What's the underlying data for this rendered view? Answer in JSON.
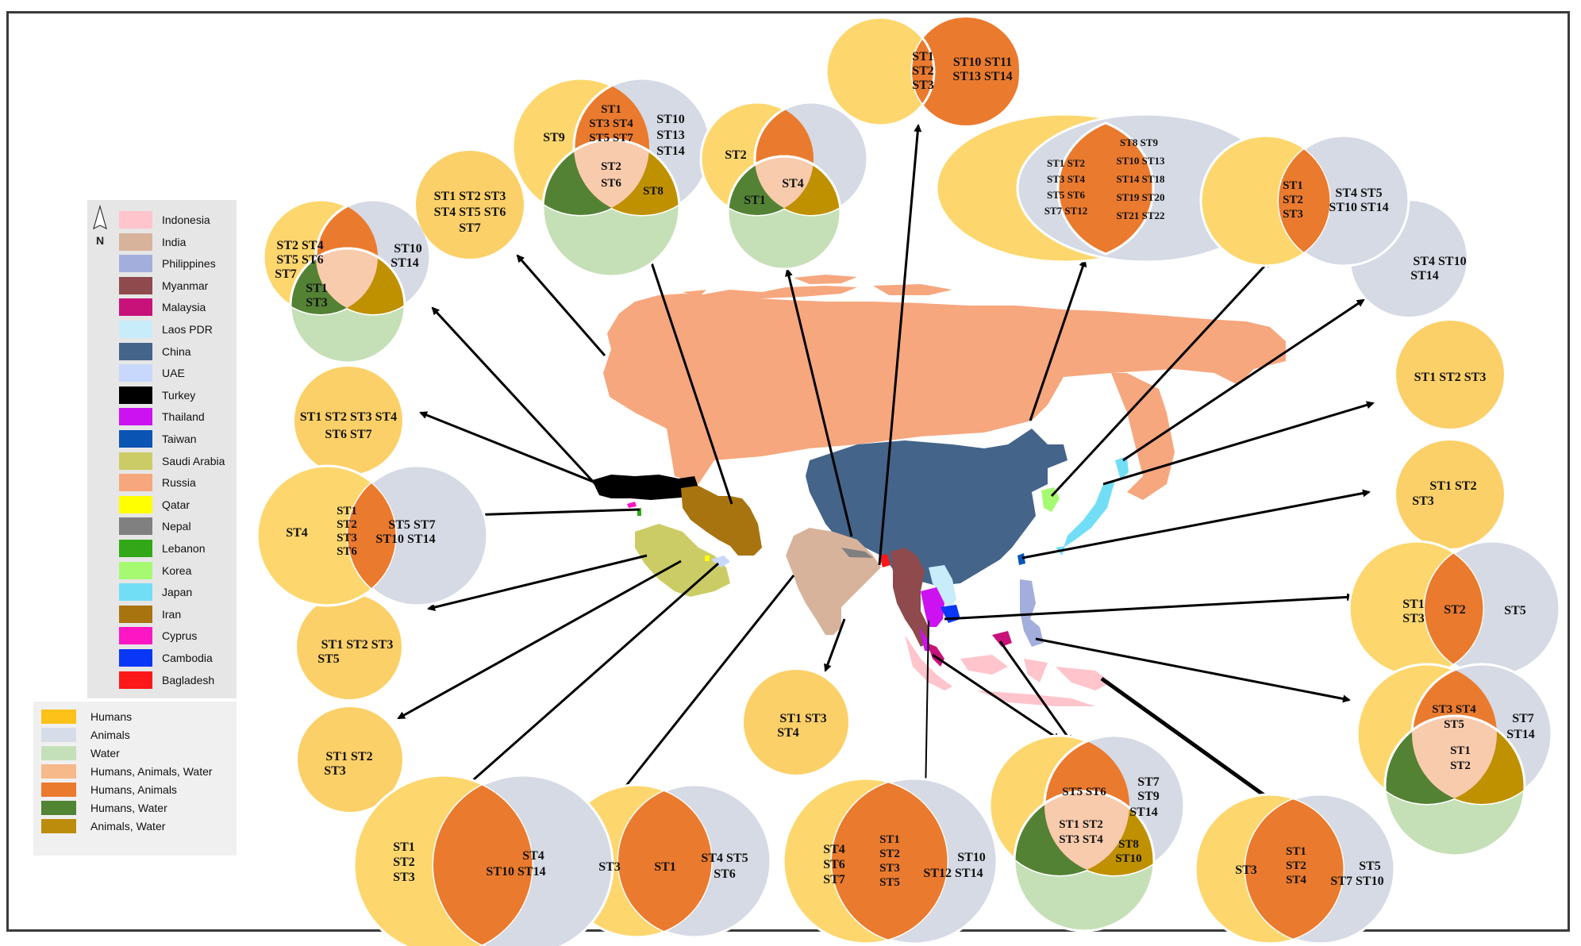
{
  "country_legend": [
    {
      "name": "Indonesia",
      "color": "#ffc4cc"
    },
    {
      "name": "India",
      "color": "#d8b39c"
    },
    {
      "name": "Philippines",
      "color": "#a4aedc"
    },
    {
      "name": "Myanmar",
      "color": "#8e4a4c"
    },
    {
      "name": "Malaysia",
      "color": "#c8127a"
    },
    {
      "name": "Laos PDR",
      "color": "#c8ecfa"
    },
    {
      "name": "China",
      "color": "#44648a"
    },
    {
      "name": "UAE",
      "color": "#c8d8fc"
    },
    {
      "name": "Turkey",
      "color": "#000000"
    },
    {
      "name": "Thailand",
      "color": "#cc12f0"
    },
    {
      "name": "Taiwan",
      "color": "#0a54b4"
    },
    {
      "name": "Saudi Arabia",
      "color": "#cccc66"
    },
    {
      "name": "Russia",
      "color": "#f6a77e"
    },
    {
      "name": "Qatar",
      "color": "#ffff00"
    },
    {
      "name": "Nepal",
      "color": "#808080"
    },
    {
      "name": "Lebanon",
      "color": "#32a818"
    },
    {
      "name": "Korea",
      "color": "#a6fa72"
    },
    {
      "name": "Japan",
      "color": "#72def6"
    },
    {
      "name": "Iran",
      "color": "#a87410"
    },
    {
      "name": "Cyprus",
      "color": "#fc16c4"
    },
    {
      "name": "Cambodia",
      "color": "#0a36f8"
    },
    {
      "name": "Bagladesh",
      "color": "#fc1818"
    }
  ],
  "source_legend": [
    {
      "name": "Humans",
      "color": "#fcc21a"
    },
    {
      "name": "Animals",
      "color": "#d6dce8"
    },
    {
      "name": "Water",
      "color": "#c4e0ba"
    },
    {
      "name": "Humans, Animals, Water",
      "color": "#f6b98a"
    },
    {
      "name": "Humans, Animals",
      "color": "#ea7a2e"
    },
    {
      "name": "Humans, Water",
      "color": "#518534"
    },
    {
      "name": "Animals, Water",
      "color": "#bc8d0c"
    }
  ],
  "north_label": "N",
  "colors": {
    "humans": "#fdd76e",
    "animals": "#d5dae5",
    "water": "#c5e0b6",
    "humans_animals": "#ea7a2e",
    "humans_water": "#548235",
    "animals_water": "#bf9000",
    "all_three": "#f8cbad",
    "single_human": "#fcd068"
  },
  "diagrams": [
    {
      "id": "taiwan",
      "texts": [
        "ST1",
        "ST2",
        "ST3",
        "ST10 ST11",
        "ST13 ST14"
      ]
    },
    {
      "id": "iran",
      "texts": [
        "ST9",
        "ST1",
        "ST3 ST4",
        "ST5 ST7",
        "ST10",
        "ST13",
        "ST14",
        "ST2",
        "ST6",
        "ST8"
      ]
    },
    {
      "id": "china",
      "texts": [
        "ST2",
        "ST4",
        "ST1"
      ]
    },
    {
      "id": "turkey",
      "texts": [
        "ST2 ST4",
        "ST5 ST6",
        "ST7",
        "ST10",
        "ST14",
        "ST1",
        "ST3"
      ]
    },
    {
      "id": "saudi-circle",
      "texts": [
        "ST1 ST2 ST3",
        "ST4 ST5 ST6",
        "ST7"
      ]
    },
    {
      "id": "lebanon-circle",
      "texts": [
        "ST1 ST2 ST3 ST4",
        "ST6 ST7"
      ]
    },
    {
      "id": "cyprus",
      "texts": [
        "ST4",
        "ST1",
        "ST2",
        "ST3",
        "ST6",
        "ST5 ST7",
        "ST10 ST14"
      ]
    },
    {
      "id": "qatar-circle",
      "texts": [
        "ST1 ST2 ST3",
        "ST5"
      ]
    },
    {
      "id": "uae-circle",
      "texts": [
        "ST1 ST2",
        "ST3"
      ]
    },
    {
      "id": "nepal-circle",
      "texts": [
        "ST1 ST3",
        "ST4"
      ]
    },
    {
      "id": "russia",
      "texts": [
        "ST1 ST2",
        "ST3 ST4",
        "ST5 ST6",
        "ST7 ST12",
        "ST8 ST9",
        "ST10 ST13",
        "ST14 ST18",
        "ST19 ST20",
        "ST21 ST22"
      ]
    },
    {
      "id": "korea",
      "texts": [
        "ST1",
        "ST2",
        "ST3",
        "ST4 ST5",
        "ST10 ST14"
      ]
    },
    {
      "id": "japan-animals",
      "texts": [
        "ST4 ST10",
        "ST14"
      ]
    },
    {
      "id": "japan-humans",
      "texts": [
        "ST1 ST2 ST3"
      ]
    },
    {
      "id": "taiwan-humans",
      "texts": [
        "ST1 ST2",
        "ST3"
      ]
    },
    {
      "id": "philippines",
      "texts": [
        "ST1",
        "ST3",
        "ST2",
        "ST5"
      ]
    },
    {
      "id": "indonesia",
      "texts": [
        "ST3 ST4",
        "ST5",
        "ST7",
        "ST14",
        "ST1",
        "ST2"
      ]
    },
    {
      "id": "malaysia",
      "texts": [
        "ST3",
        "ST1",
        "ST2",
        "ST4",
        "ST5",
        "ST7 ST10"
      ]
    },
    {
      "id": "thailand",
      "texts": [
        "ST5 ST6",
        "ST7",
        "ST9",
        "ST14",
        "ST1 ST2",
        "ST3 ST4",
        "ST8",
        "ST10"
      ]
    },
    {
      "id": "myanmar",
      "texts": [
        "ST4",
        "ST6",
        "ST7",
        "ST1",
        "ST2",
        "ST3",
        "ST5",
        "ST10",
        "ST12 ST14"
      ]
    },
    {
      "id": "india",
      "texts": [
        "ST3",
        "ST1",
        "ST4 ST5",
        "ST6"
      ]
    },
    {
      "id": "saudi-arabia",
      "texts": [
        "ST1",
        "ST2",
        "ST3",
        "ST4",
        "ST10 ST14"
      ]
    }
  ]
}
